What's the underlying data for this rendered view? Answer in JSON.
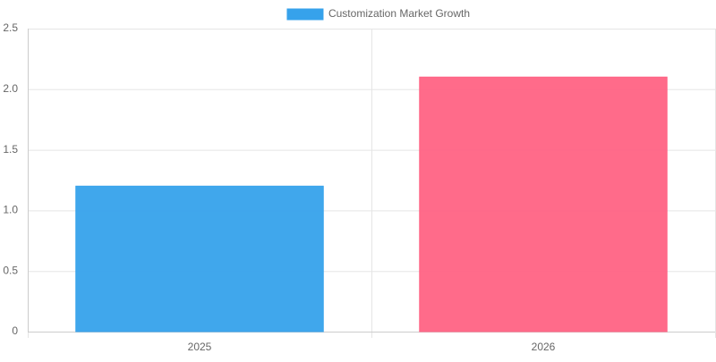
{
  "chart_data": {
    "type": "bar",
    "categories": [
      "2025",
      "2026"
    ],
    "series": [
      {
        "name": "Customization Market Growth",
        "colors": [
          "#36a2eb",
          "#ff6384"
        ],
        "values": [
          1.2,
          2.1
        ]
      }
    ],
    "ylim": [
      0,
      2.5
    ],
    "yticks": [
      0,
      0.5,
      {
        "value": 1,
        "label": "1.0"
      },
      1.5,
      {
        "value": 2,
        "label": "2.0"
      },
      2.5
    ],
    "grid": true,
    "legend": "top"
  }
}
